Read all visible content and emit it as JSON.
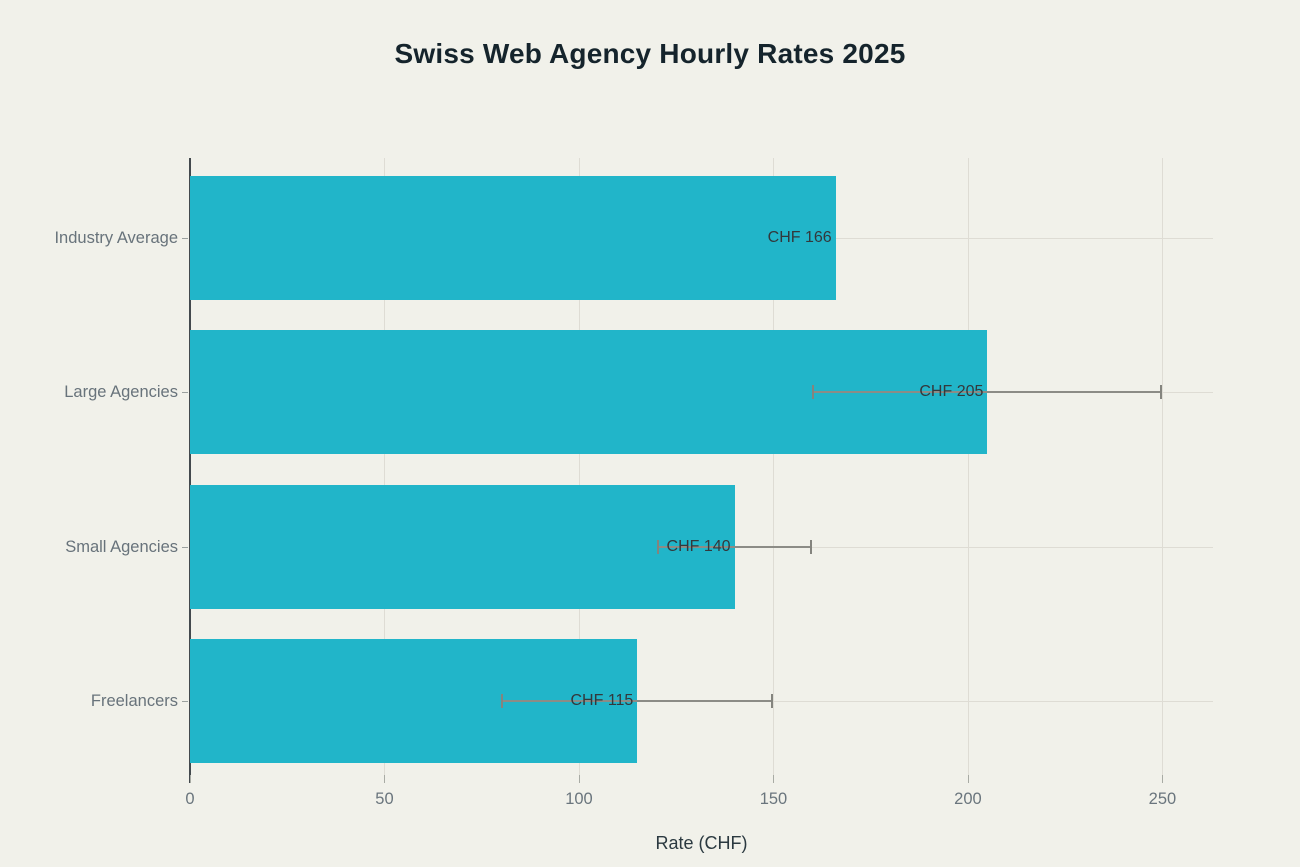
{
  "chart_data": {
    "type": "bar",
    "orientation": "horizontal",
    "title": "Swiss Web Agency Hourly Rates 2025",
    "xlabel": "Rate (CHF)",
    "categories": [
      "Industry Average",
      "Large Agencies",
      "Small Agencies",
      "Freelancers"
    ],
    "values": [
      166,
      205,
      140,
      115
    ],
    "bar_labels": [
      "CHF 166",
      "CHF 205",
      "CHF 140",
      "CHF 115"
    ],
    "error_ranges": [
      null,
      [
        160,
        250
      ],
      [
        120,
        160
      ],
      [
        80,
        150
      ]
    ],
    "xticks": [
      0,
      50,
      100,
      150,
      200,
      250
    ],
    "xlim": [
      0,
      263
    ],
    "grid": true,
    "legend": null,
    "colors": {
      "bar": "#21b5c9",
      "background": "#f1f1ea",
      "title_text": "#15242c",
      "axis_label_text": "#68737b",
      "bar_label_text": "#33383c",
      "gridline": "#dedcd4",
      "error_bar": "#8c8c86",
      "axis_line": "#43494d"
    }
  }
}
